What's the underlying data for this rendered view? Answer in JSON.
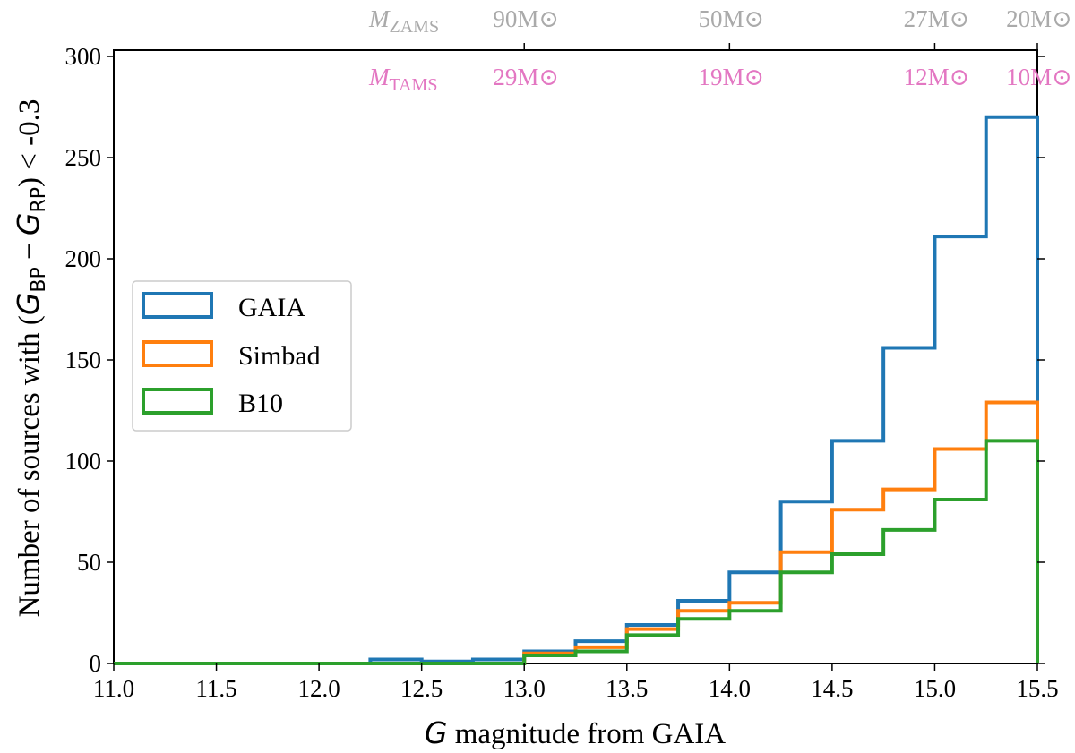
{
  "colors": {
    "gaia": "#1f77b4",
    "simbad": "#ff7f0e",
    "b10": "#2ca02c",
    "zams": "#aaaaaa",
    "tams": "#e377c2"
  },
  "chart_data": {
    "type": "histogram-step",
    "xlabel": {
      "italic": "G",
      "rest": " magnitude from GAIA"
    },
    "ylabel": {
      "prefix": "Number of sources with (",
      "G1": "G",
      "sub1": "BP",
      "minus": " − ",
      "G2": "G",
      "sub2": "RP",
      "suffix": ") < -0.3"
    },
    "xlim": [
      11.0,
      15.5
    ],
    "ylim": [
      0,
      305
    ],
    "xticks": [
      11.0,
      11.5,
      12.0,
      12.5,
      13.0,
      13.5,
      14.0,
      14.5,
      15.0,
      15.5
    ],
    "xtick_labels": [
      "11.0",
      "11.5",
      "12.0",
      "12.5",
      "13.0",
      "13.5",
      "14.0",
      "14.5",
      "15.0",
      "15.5"
    ],
    "yticks": [
      0,
      50,
      100,
      150,
      200,
      250,
      300
    ],
    "ytick_labels": [
      "0",
      "50",
      "100",
      "150",
      "200",
      "250",
      "300"
    ],
    "bin_edges": [
      11.0,
      11.25,
      11.5,
      11.75,
      12.0,
      12.25,
      12.5,
      12.75,
      13.0,
      13.25,
      13.5,
      13.75,
      14.0,
      14.25,
      14.5,
      14.75,
      15.0,
      15.25,
      15.5
    ],
    "series": [
      {
        "key": "gaia",
        "name": "GAIA",
        "values": [
          0,
          0,
          0,
          0,
          0,
          2,
          1,
          2,
          6,
          11,
          19,
          31,
          45,
          80,
          110,
          156,
          211,
          270
        ]
      },
      {
        "key": "simbad",
        "name": "Simbad",
        "values": [
          0,
          0,
          0,
          0,
          0,
          0,
          0,
          0,
          5,
          8,
          17,
          26,
          30,
          55,
          76,
          86,
          106,
          129
        ]
      },
      {
        "key": "b10",
        "name": "B10",
        "values": [
          0,
          0,
          0,
          0,
          0,
          0,
          0,
          0,
          4,
          6,
          14,
          22,
          26,
          45,
          54,
          66,
          81,
          110
        ]
      }
    ],
    "legend_position": "center-left",
    "top_axis": {
      "ticks": [
        13.0,
        14.0,
        15.0,
        15.5
      ],
      "zams_prefix": "M",
      "zams_sub": "ZAMS",
      "tams_prefix": "M",
      "tams_sub": "TAMS",
      "zams_labels": [
        "90M",
        "50M",
        "27M",
        "20M"
      ],
      "tams_labels": [
        "29M",
        "19M",
        "12M",
        "10M"
      ],
      "sun_symbol": "⊙"
    }
  }
}
